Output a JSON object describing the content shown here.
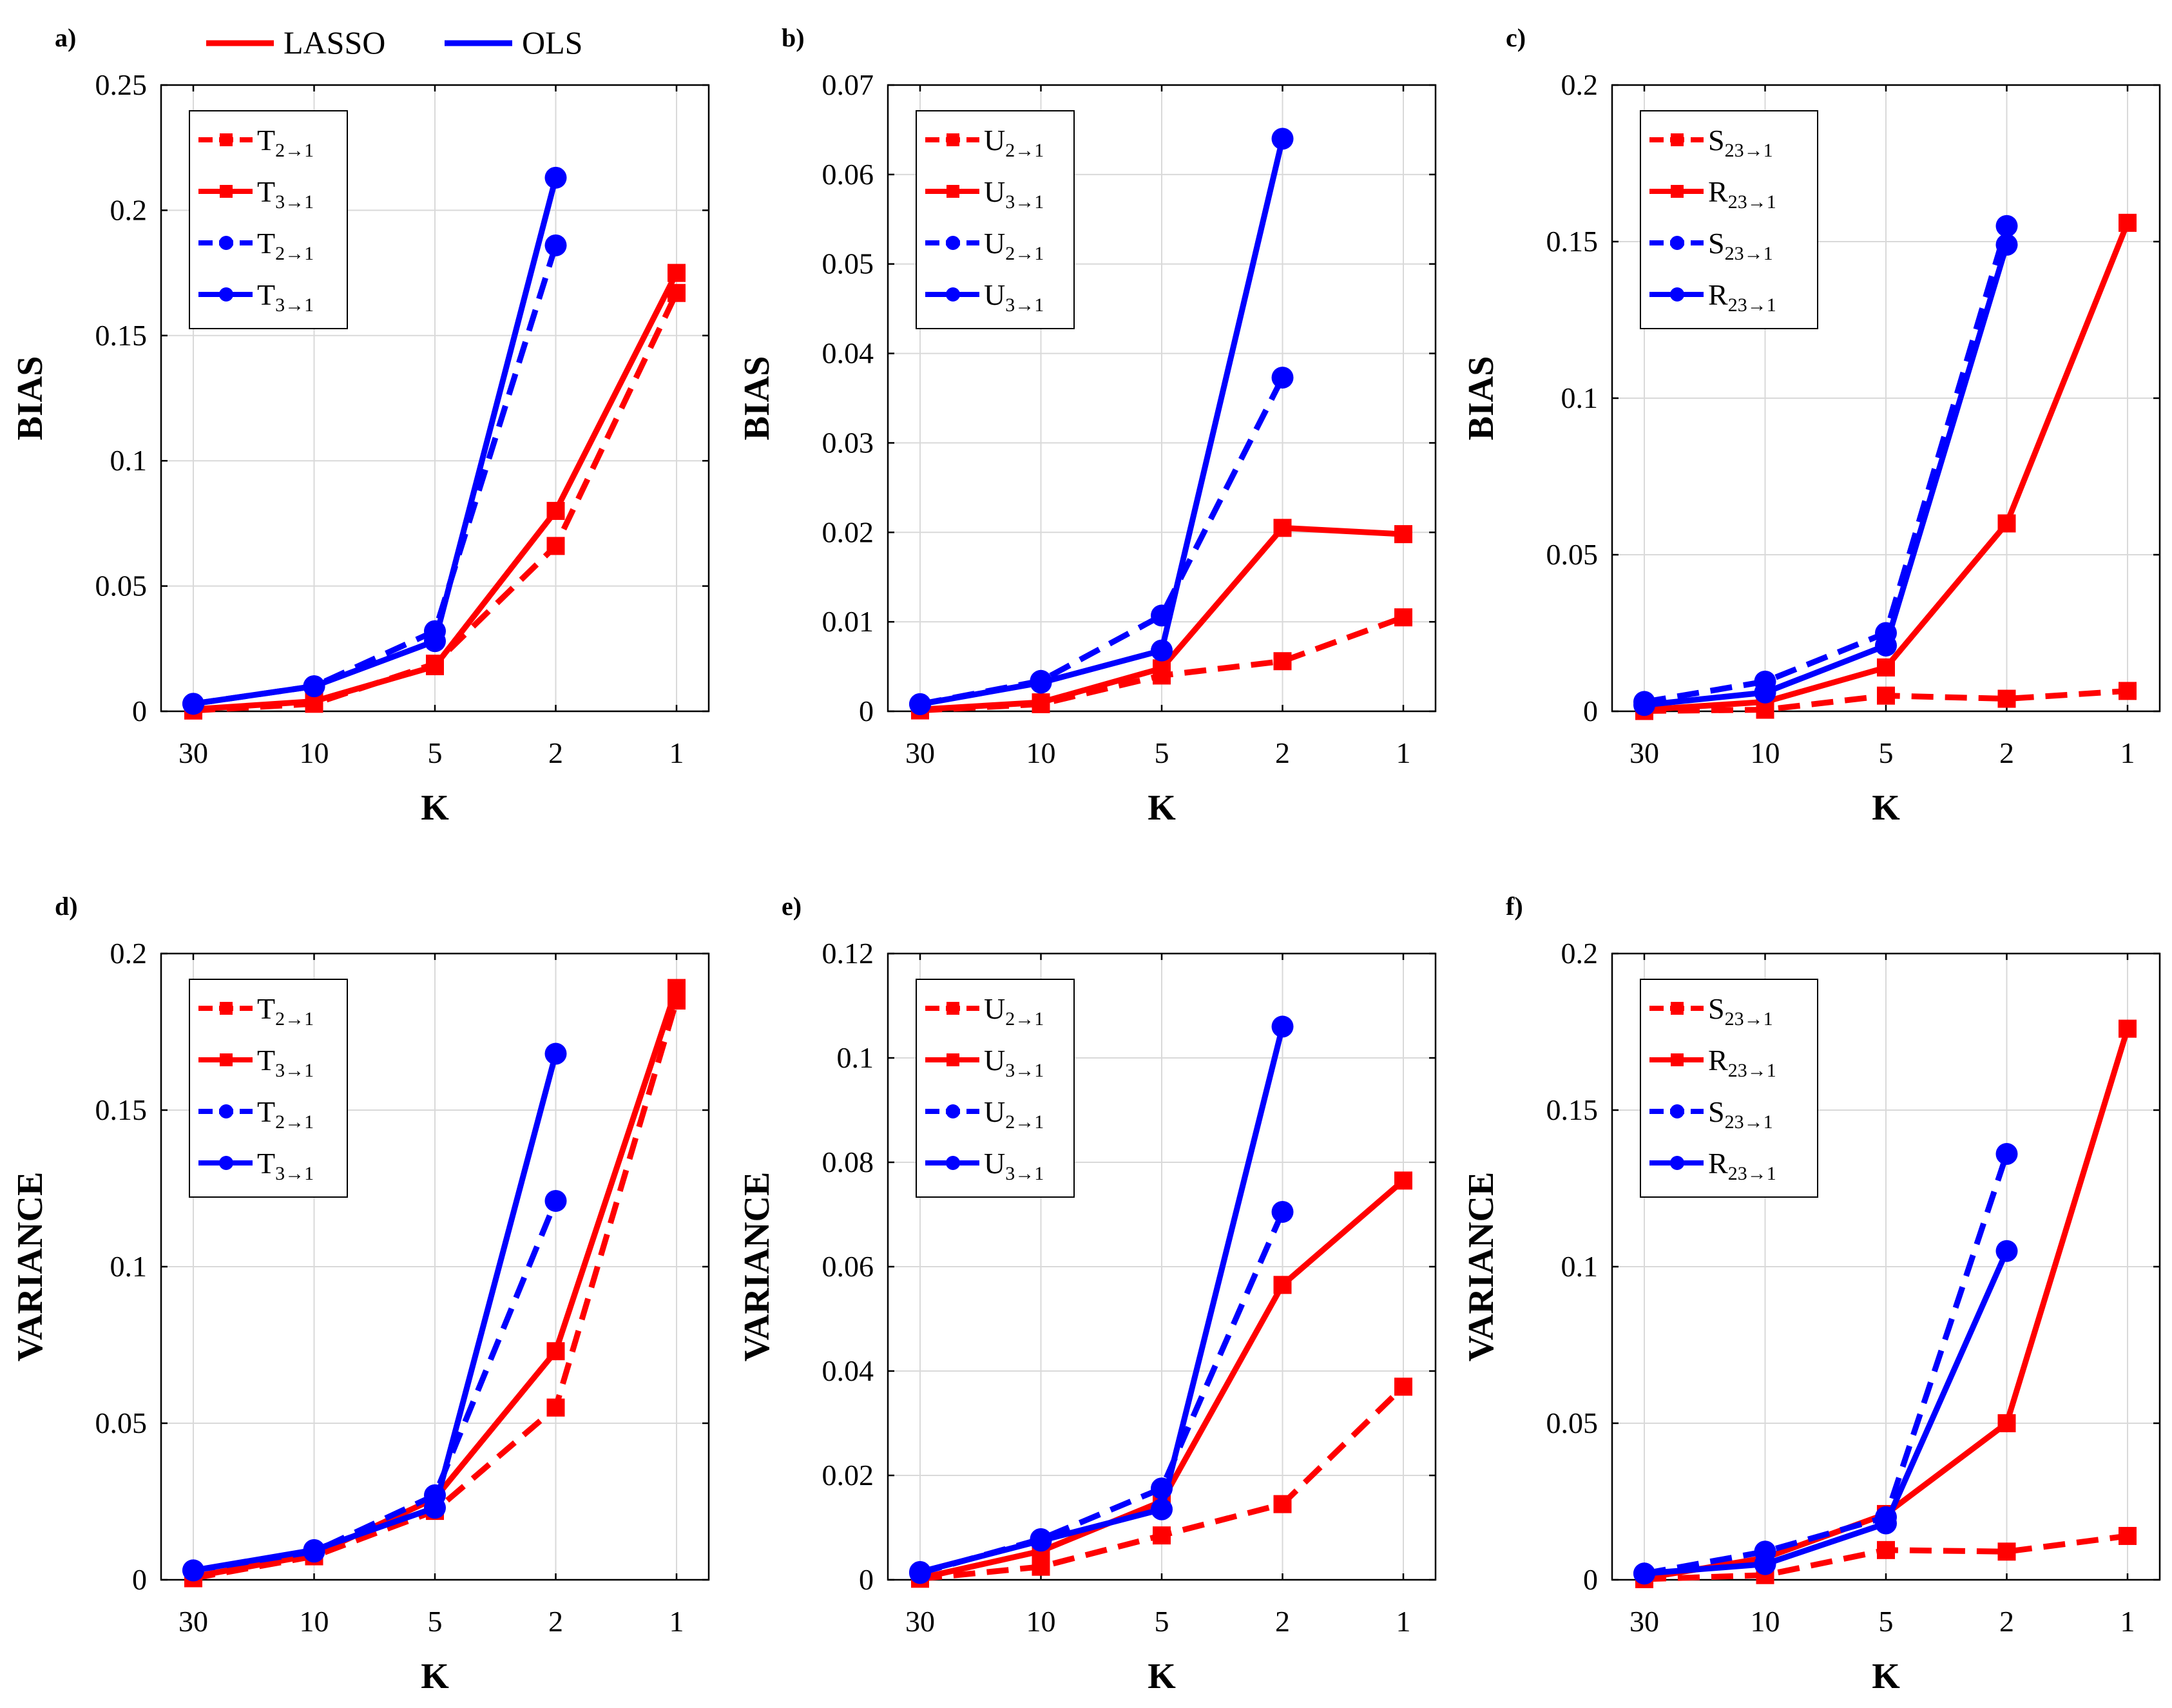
{
  "global_legend": [
    {
      "name": "LASSO",
      "color": "#ff0000"
    },
    {
      "name": "OLS",
      "color": "#0000ff"
    }
  ],
  "colors": {
    "lasso": "#ff0000",
    "ols": "#0000ff",
    "grid": "#d9d9d9",
    "axis": "#000000"
  },
  "chart_data": [
    {
      "type": "line",
      "panel": "a)",
      "xlabel": "K",
      "ylabel": "BIAS",
      "categories": [
        "30",
        "10",
        "5",
        "2",
        "1"
      ],
      "ylim": [
        0,
        0.25
      ],
      "yticks": [
        0,
        0.05,
        0.1,
        0.15,
        0.2,
        0.25
      ],
      "ytick_labels": [
        "0",
        "0.05",
        "0.1",
        "0.15",
        "0.2",
        "0.25"
      ],
      "grid": true,
      "legend_position": "top-left",
      "series": [
        {
          "base": "T",
          "sub": "2",
          "color": "#ff0000",
          "dash": true,
          "marker": "square",
          "values": [
            0.0003,
            0.003,
            0.019,
            0.066,
            0.167
          ]
        },
        {
          "base": "T",
          "sub": "3",
          "color": "#ff0000",
          "dash": false,
          "marker": "square",
          "values": [
            0.0008,
            0.004,
            0.018,
            0.08,
            0.175
          ]
        },
        {
          "base": "T",
          "sub": "2",
          "color": "#0000ff",
          "dash": true,
          "marker": "circle",
          "values": [
            0.003,
            0.01,
            0.032,
            0.186,
            null
          ]
        },
        {
          "base": "T",
          "sub": "3",
          "color": "#0000ff",
          "dash": false,
          "marker": "circle",
          "values": [
            0.003,
            0.01,
            0.028,
            0.213,
            null
          ]
        }
      ]
    },
    {
      "type": "line",
      "panel": "b)",
      "xlabel": "K",
      "ylabel": "BIAS",
      "categories": [
        "30",
        "10",
        "5",
        "2",
        "1"
      ],
      "ylim": [
        0,
        0.07
      ],
      "yticks": [
        0,
        0.01,
        0.02,
        0.03,
        0.04,
        0.05,
        0.06,
        0.07
      ],
      "ytick_labels": [
        "0",
        "0.01",
        "0.02",
        "0.03",
        "0.04",
        "0.05",
        "0.06",
        "0.07"
      ],
      "grid": true,
      "legend_position": "top-left",
      "series": [
        {
          "base": "U",
          "sub": "2",
          "color": "#ff0000",
          "dash": true,
          "marker": "square",
          "values": [
            0.0001,
            0.0008,
            0.004,
            0.0056,
            0.0105
          ]
        },
        {
          "base": "U",
          "sub": "3",
          "color": "#ff0000",
          "dash": false,
          "marker": "square",
          "values": [
            0.0002,
            0.001,
            0.0048,
            0.0205,
            0.0198
          ]
        },
        {
          "base": "U",
          "sub": "2",
          "color": "#0000ff",
          "dash": true,
          "marker": "circle",
          "values": [
            0.0008,
            0.0034,
            0.0107,
            0.0373,
            null
          ]
        },
        {
          "base": "U",
          "sub": "3",
          "color": "#0000ff",
          "dash": false,
          "marker": "circle",
          "values": [
            0.0008,
            0.0032,
            0.0068,
            0.064,
            null
          ]
        }
      ]
    },
    {
      "type": "line",
      "panel": "c)",
      "xlabel": "K",
      "ylabel": "BIAS",
      "categories": [
        "30",
        "10",
        "5",
        "2",
        "1"
      ],
      "ylim": [
        0,
        0.2
      ],
      "yticks": [
        0,
        0.05,
        0.1,
        0.15,
        0.2
      ],
      "ytick_labels": [
        "0",
        "0.05",
        "0.1",
        "0.15",
        "0.2"
      ],
      "grid": true,
      "legend_position": "top-left",
      "series": [
        {
          "base": "S",
          "sub": "23",
          "color": "#ff0000",
          "dash": true,
          "marker": "square",
          "values": [
            0.0001,
            0.0005,
            0.005,
            0.004,
            0.0065
          ]
        },
        {
          "base": "R",
          "sub": "23",
          "color": "#ff0000",
          "dash": false,
          "marker": "square",
          "values": [
            0.0005,
            0.003,
            0.014,
            0.06,
            0.156
          ]
        },
        {
          "base": "S",
          "sub": "23",
          "color": "#0000ff",
          "dash": true,
          "marker": "circle",
          "values": [
            0.003,
            0.0095,
            0.025,
            0.155,
            null
          ]
        },
        {
          "base": "R",
          "sub": "23",
          "color": "#0000ff",
          "dash": false,
          "marker": "circle",
          "values": [
            0.002,
            0.006,
            0.021,
            0.149,
            null
          ]
        }
      ]
    },
    {
      "type": "line",
      "panel": "d)",
      "xlabel": "K",
      "ylabel": "VARIANCE",
      "categories": [
        "30",
        "10",
        "5",
        "2",
        "1"
      ],
      "ylim": [
        0,
        0.2
      ],
      "yticks": [
        0,
        0.05,
        0.1,
        0.15,
        0.2
      ],
      "ytick_labels": [
        "0",
        "0.05",
        "0.1",
        "0.15",
        "0.2"
      ],
      "grid": true,
      "legend_position": "top-left",
      "series": [
        {
          "base": "T",
          "sub": "2",
          "color": "#ff0000",
          "dash": true,
          "marker": "square",
          "values": [
            0.0005,
            0.0075,
            0.022,
            0.055,
            0.185
          ]
        },
        {
          "base": "T",
          "sub": "3",
          "color": "#ff0000",
          "dash": false,
          "marker": "square",
          "values": [
            0.001,
            0.008,
            0.026,
            0.073,
            0.189
          ]
        },
        {
          "base": "T",
          "sub": "2",
          "color": "#0000ff",
          "dash": true,
          "marker": "circle",
          "values": [
            0.003,
            0.009,
            0.027,
            0.121,
            null
          ]
        },
        {
          "base": "T",
          "sub": "3",
          "color": "#0000ff",
          "dash": false,
          "marker": "circle",
          "values": [
            0.003,
            0.0095,
            0.023,
            0.168,
            null
          ]
        }
      ]
    },
    {
      "type": "line",
      "panel": "e)",
      "xlabel": "K",
      "ylabel": "VARIANCE",
      "categories": [
        "30",
        "10",
        "5",
        "2",
        "1"
      ],
      "ylim": [
        0,
        0.12
      ],
      "yticks": [
        0,
        0.02,
        0.04,
        0.06,
        0.08,
        0.1,
        0.12
      ],
      "ytick_labels": [
        "0",
        "0.02",
        "0.04",
        "0.06",
        "0.08",
        "0.1",
        "0.12"
      ],
      "grid": true,
      "legend_position": "top-left",
      "series": [
        {
          "base": "U",
          "sub": "2",
          "color": "#ff0000",
          "dash": true,
          "marker": "square",
          "values": [
            0.0002,
            0.0025,
            0.0085,
            0.0145,
            0.037
          ]
        },
        {
          "base": "U",
          "sub": "3",
          "color": "#ff0000",
          "dash": false,
          "marker": "square",
          "values": [
            0.0003,
            0.0055,
            0.015,
            0.0565,
            0.0765
          ]
        },
        {
          "base": "U",
          "sub": "2",
          "color": "#0000ff",
          "dash": true,
          "marker": "circle",
          "values": [
            0.0013,
            0.0078,
            0.0175,
            0.0705,
            null
          ]
        },
        {
          "base": "U",
          "sub": "3",
          "color": "#0000ff",
          "dash": false,
          "marker": "circle",
          "values": [
            0.0015,
            0.0075,
            0.0135,
            0.106,
            null
          ]
        }
      ]
    },
    {
      "type": "line",
      "panel": "f)",
      "xlabel": "K",
      "ylabel": "VARIANCE",
      "categories": [
        "30",
        "10",
        "5",
        "2",
        "1"
      ],
      "ylim": [
        0,
        0.2
      ],
      "yticks": [
        0,
        0.05,
        0.1,
        0.15,
        0.2
      ],
      "ytick_labels": [
        "0",
        "0.05",
        "0.1",
        "0.15",
        "0.2"
      ],
      "grid": true,
      "legend_position": "top-left",
      "series": [
        {
          "base": "S",
          "sub": "23",
          "color": "#ff0000",
          "dash": true,
          "marker": "square",
          "values": [
            0.0002,
            0.0015,
            0.0095,
            0.009,
            0.014
          ]
        },
        {
          "base": "R",
          "sub": "23",
          "color": "#ff0000",
          "dash": false,
          "marker": "square",
          "values": [
            0.0005,
            0.007,
            0.021,
            0.05,
            0.176
          ]
        },
        {
          "base": "S",
          "sub": "23",
          "color": "#0000ff",
          "dash": true,
          "marker": "circle",
          "values": [
            0.002,
            0.009,
            0.02,
            0.136,
            null
          ]
        },
        {
          "base": "R",
          "sub": "23",
          "color": "#0000ff",
          "dash": false,
          "marker": "circle",
          "values": [
            0.002,
            0.005,
            0.018,
            0.105,
            null
          ]
        }
      ]
    }
  ]
}
